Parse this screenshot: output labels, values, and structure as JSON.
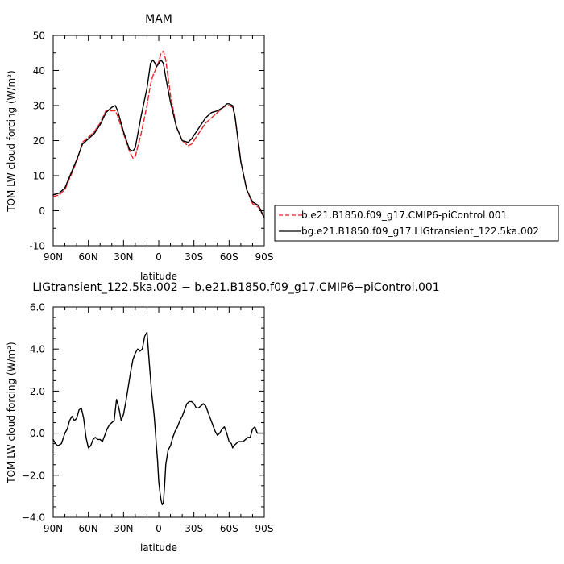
{
  "chart_data": [
    {
      "type": "line",
      "title": "MAM",
      "xlabel": "latitude",
      "ylabel": "TOM LW cloud forcing (W/m²)",
      "xlim": [
        90,
        -90
      ],
      "ylim": [
        -10,
        50
      ],
      "xticks": [
        90,
        60,
        30,
        0,
        -30,
        -60,
        -90
      ],
      "xtick_labels": [
        "90N",
        "60N",
        "30N",
        "0",
        "30S",
        "60S",
        "90S"
      ],
      "yticks": [
        -10,
        0,
        10,
        20,
        30,
        40,
        50
      ],
      "ytick_labels": [
        "-10",
        "0",
        "10",
        "20",
        "30",
        "40",
        "50"
      ],
      "grid": false,
      "legend_position": "right",
      "series": [
        {
          "name": "b.e21.B1850.f09_g17.CMIP6-piControl.001",
          "color": "#e8242a",
          "dash": "dashed",
          "x": [
            90,
            85,
            80,
            75,
            70,
            65,
            60,
            55,
            50,
            45,
            40,
            37,
            35,
            30,
            25,
            22,
            20,
            15,
            10,
            7,
            5,
            3,
            2,
            0,
            -2,
            -4,
            -6,
            -10,
            -15,
            -20,
            -25,
            -28,
            -30,
            -35,
            -40,
            -45,
            -50,
            -55,
            -58,
            -60,
            -63,
            -65,
            -70,
            -75,
            -80,
            -85,
            -90
          ],
          "y": [
            4,
            4.5,
            6,
            10,
            14,
            19.5,
            21,
            22.5,
            25,
            28.5,
            28.5,
            28.5,
            27,
            22,
            17,
            15,
            15.5,
            22,
            30,
            36,
            38.5,
            40,
            41,
            42.5,
            45,
            45.5,
            43,
            33,
            24,
            20,
            18.5,
            19,
            20,
            22.5,
            25,
            26.5,
            28,
            29.5,
            30,
            30,
            29.5,
            27,
            14,
            6,
            2,
            1,
            -2
          ]
        },
        {
          "name": "bg.e21.B1850.f09_g17.LIGtransient_122.5ka.002",
          "color": "#000000",
          "dash": "solid",
          "x": [
            90,
            85,
            80,
            75,
            70,
            65,
            60,
            55,
            50,
            45,
            40,
            37,
            35,
            30,
            25,
            22,
            20,
            15,
            10,
            7,
            5,
            3,
            2,
            0,
            -2,
            -4,
            -6,
            -10,
            -15,
            -20,
            -25,
            -28,
            -30,
            -35,
            -40,
            -45,
            -50,
            -55,
            -58,
            -60,
            -63,
            -65,
            -70,
            -75,
            -80,
            -85,
            -90
          ],
          "y": [
            4.5,
            5,
            6.5,
            10.5,
            14.5,
            19,
            20.5,
            22,
            24.5,
            28,
            29.5,
            30,
            28.5,
            22.5,
            17.5,
            17,
            18,
            27,
            35,
            42,
            43,
            42,
            41,
            42,
            43,
            42,
            38,
            31,
            24,
            20,
            19.5,
            20.5,
            21.5,
            24,
            26.5,
            28,
            28.5,
            29.5,
            30.5,
            30.5,
            30,
            27,
            14,
            6,
            2.5,
            1.5,
            -2
          ]
        }
      ]
    },
    {
      "type": "line",
      "title": "LIGtransient_122.5ka.002 − b.e21.B1850.f09_g17.CMIP6−piControl.001",
      "xlabel": "latitude",
      "ylabel": "TOM LW cloud forcing (W/m²)",
      "xlim": [
        90,
        -90
      ],
      "ylim": [
        -4,
        6
      ],
      "xticks": [
        90,
        60,
        30,
        0,
        -30,
        -60,
        -90
      ],
      "xtick_labels": [
        "90N",
        "60N",
        "30N",
        "0",
        "30S",
        "60S",
        "90S"
      ],
      "yticks": [
        -4,
        -2,
        0,
        2,
        4,
        6
      ],
      "ytick_labels": [
        "−4.0",
        "−2.0",
        "0.0",
        "2.0",
        "4.0",
        "6.0"
      ],
      "grid": false,
      "series": [
        {
          "name": "",
          "color": "#000000",
          "dash": "solid",
          "x": [
            90,
            88,
            86,
            83,
            80,
            78,
            76,
            74,
            72,
            70,
            68,
            66,
            64,
            62,
            60,
            58,
            56,
            54,
            52,
            50,
            48,
            46,
            44,
            42,
            40,
            38,
            36,
            34,
            32,
            30,
            28,
            26,
            24,
            22,
            20,
            18,
            16,
            14,
            12,
            10,
            8,
            6,
            4,
            3,
            2,
            1,
            0,
            -1,
            -2,
            -3,
            -4,
            -5,
            -6,
            -8,
            -10,
            -12,
            -14,
            -16,
            -18,
            -20,
            -22,
            -24,
            -26,
            -28,
            -30,
            -32,
            -34,
            -36,
            -38,
            -40,
            -42,
            -44,
            -46,
            -48,
            -50,
            -52,
            -54,
            -56,
            -58,
            -60,
            -62,
            -63,
            -64,
            -66,
            -68,
            -70,
            -72,
            -74,
            -76,
            -78,
            -80,
            -82,
            -84,
            -86,
            -88,
            -90
          ],
          "y": [
            -0.3,
            -0.5,
            -0.6,
            -0.5,
            0,
            0.2,
            0.6,
            0.8,
            0.6,
            0.7,
            1.1,
            1.2,
            0.7,
            -0.2,
            -0.7,
            -0.6,
            -0.3,
            -0.2,
            -0.3,
            -0.3,
            -0.4,
            -0.1,
            0.2,
            0.4,
            0.5,
            0.6,
            1.6,
            1.2,
            0.6,
            0.9,
            1.5,
            2.2,
            2.9,
            3.5,
            3.8,
            4.0,
            3.9,
            4.0,
            4.6,
            4.8,
            3.3,
            1.9,
            0.9,
            0.2,
            -0.6,
            -1.3,
            -2.3,
            -2.8,
            -3.2,
            -3.4,
            -3.3,
            -2.5,
            -1.5,
            -0.8,
            -0.6,
            -0.2,
            0.1,
            0.3,
            0.6,
            0.8,
            1.1,
            1.4,
            1.5,
            1.5,
            1.4,
            1.2,
            1.2,
            1.3,
            1.4,
            1.3,
            1.0,
            0.7,
            0.4,
            0.1,
            -0.1,
            0.0,
            0.2,
            0.3,
            0.0,
            -0.4,
            -0.5,
            -0.7,
            -0.6,
            -0.5,
            -0.4,
            -0.4,
            -0.4,
            -0.3,
            -0.2,
            -0.2,
            0.2,
            0.3,
            0,
            0,
            0,
            0
          ]
        }
      ]
    }
  ]
}
